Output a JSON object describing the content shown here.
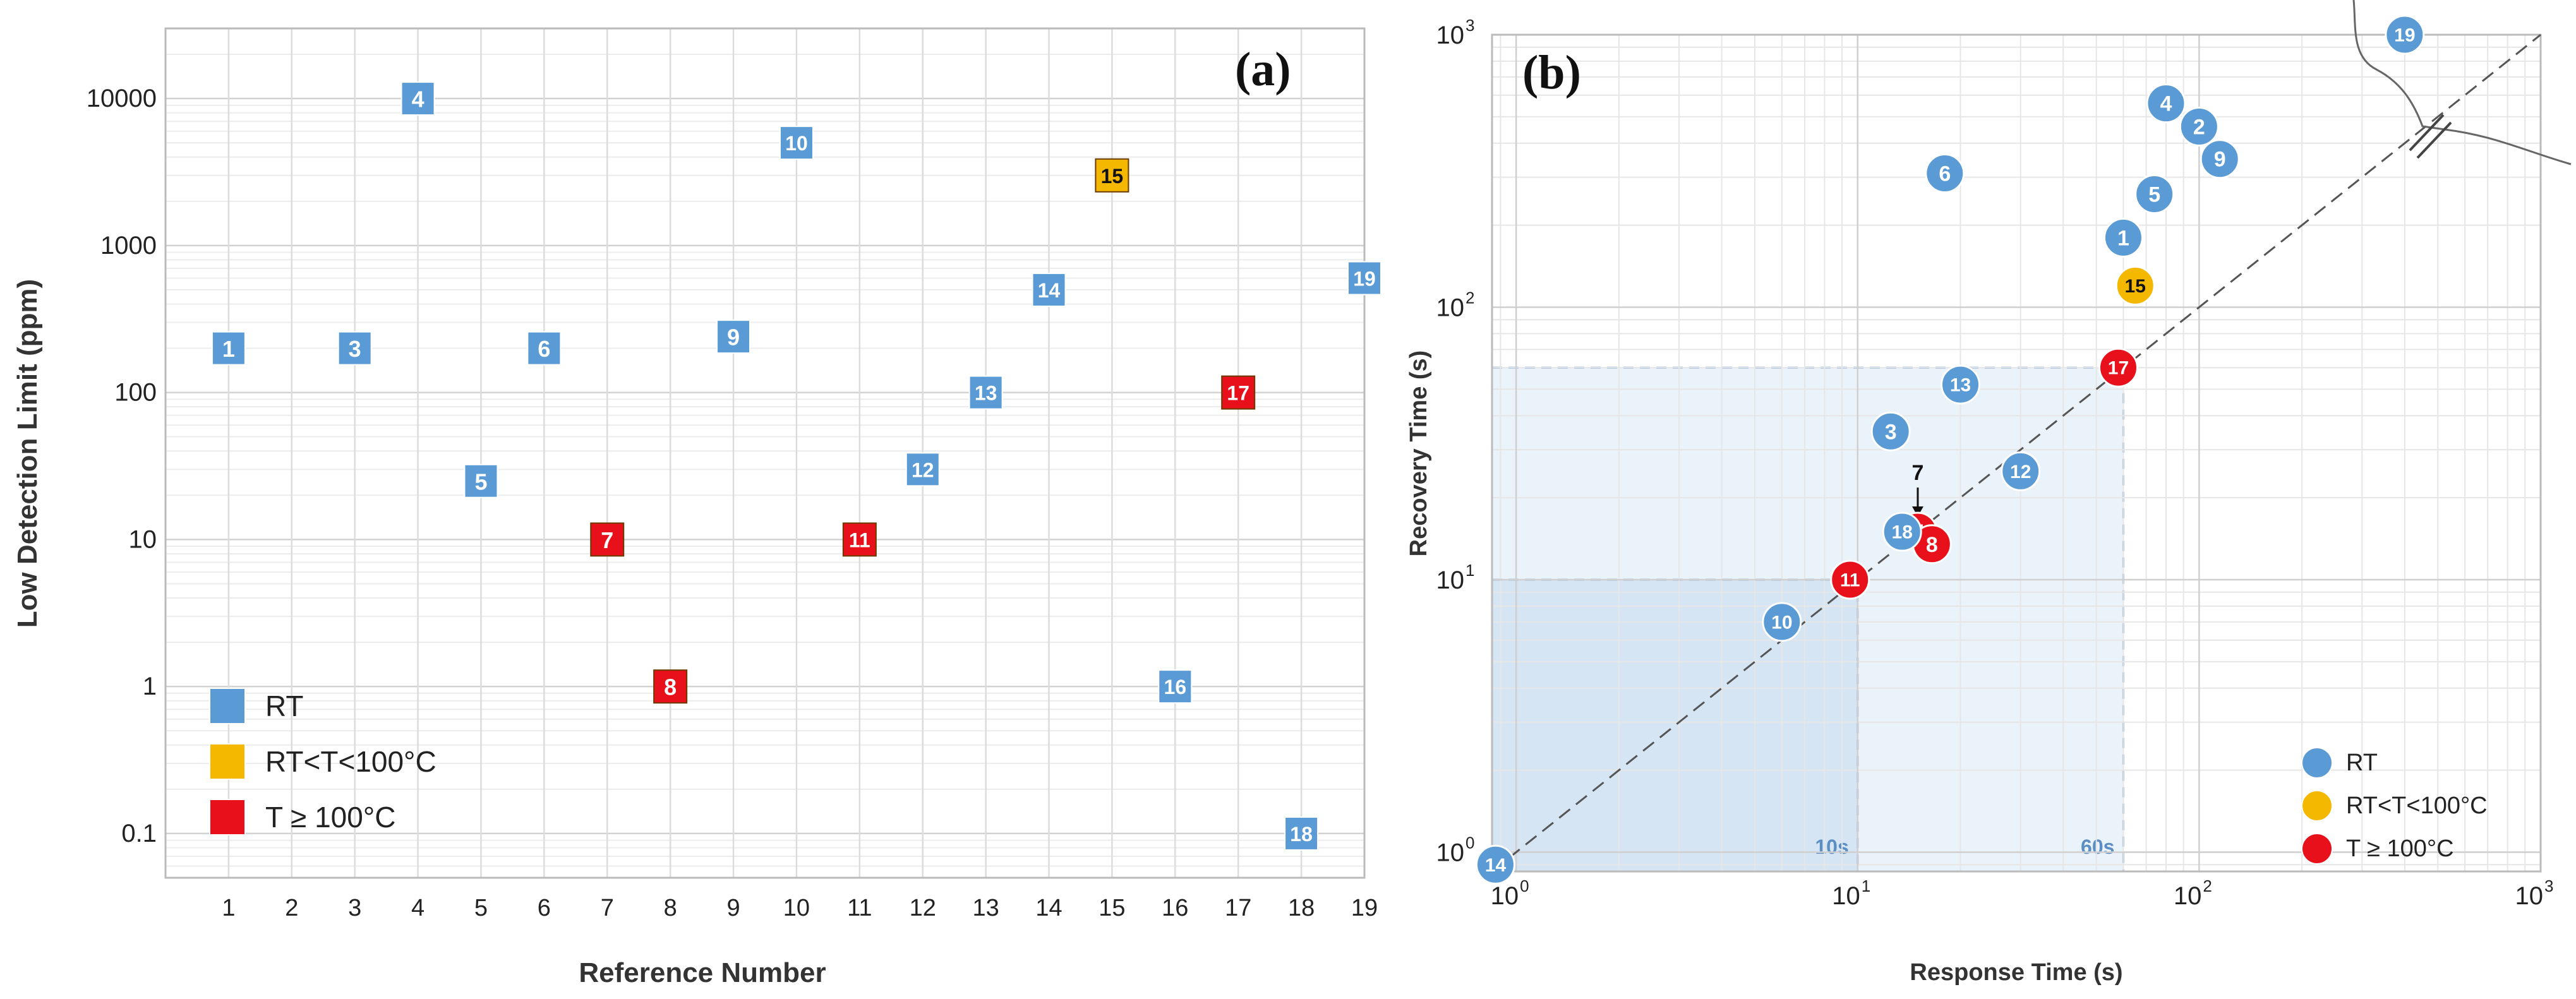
{
  "chart_data": [
    {
      "type": "scatter",
      "panel_label": "(a)",
      "xlabel": "Reference Number",
      "ylabel": "Low Detection Limit (ppm)",
      "yscale": "log",
      "xlim": [
        0,
        19
      ],
      "ylim": [
        0.05,
        30000
      ],
      "x_ticks": [
        "1",
        "2",
        "3",
        "4",
        "5",
        "6",
        "7",
        "8",
        "9",
        "10",
        "11",
        "12",
        "13",
        "14",
        "15",
        "16",
        "17",
        "18",
        "19"
      ],
      "y_ticks": [
        {
          "value": 0.1,
          "label": "0.1"
        },
        {
          "value": 1,
          "label": "1"
        },
        {
          "value": 10,
          "label": "10"
        },
        {
          "value": 100,
          "label": "100"
        },
        {
          "value": 1000,
          "label": "1000"
        },
        {
          "value": 10000,
          "label": "10000"
        }
      ],
      "legend": [
        {
          "label": "RT",
          "color": "#5b9bd5"
        },
        {
          "label": "RT<T<100°C",
          "color": "#f5b800"
        },
        {
          "label": "T ≥ 100°C",
          "color": "#e8101a"
        }
      ],
      "points": [
        {
          "label": "1",
          "x": 1,
          "y": 200,
          "group": 0
        },
        {
          "label": "3",
          "x": 3,
          "y": 200,
          "group": 0
        },
        {
          "label": "4",
          "x": 4,
          "y": 10000,
          "group": 0
        },
        {
          "label": "5",
          "x": 5,
          "y": 25,
          "group": 0
        },
        {
          "label": "6",
          "x": 6,
          "y": 200,
          "group": 0
        },
        {
          "label": "7",
          "x": 7,
          "y": 10,
          "group": 2
        },
        {
          "label": "8",
          "x": 8,
          "y": 1,
          "group": 2
        },
        {
          "label": "9",
          "x": 9,
          "y": 240,
          "group": 0
        },
        {
          "label": "10",
          "x": 10,
          "y": 5000,
          "group": 0
        },
        {
          "label": "11",
          "x": 11,
          "y": 10,
          "group": 2
        },
        {
          "label": "12",
          "x": 12,
          "y": 30,
          "group": 0
        },
        {
          "label": "13",
          "x": 13,
          "y": 100,
          "group": 0
        },
        {
          "label": "14",
          "x": 14,
          "y": 500,
          "group": 0
        },
        {
          "label": "15",
          "x": 15,
          "y": 3000,
          "group": 1
        },
        {
          "label": "16",
          "x": 16,
          "y": 1,
          "group": 0
        },
        {
          "label": "17",
          "x": 17,
          "y": 100,
          "group": 2
        },
        {
          "label": "18",
          "x": 18,
          "y": 0.1,
          "group": 0
        },
        {
          "label": "19",
          "x": 19,
          "y": 600,
          "group": 0
        }
      ]
    },
    {
      "type": "scatter",
      "panel_label": "(b)",
      "xlabel": "Response Time (s)",
      "ylabel": "Recovery Time (s)",
      "xscale": "log",
      "yscale": "log",
      "xlim": [
        0.85,
        1000
      ],
      "ylim": [
        0.85,
        1000
      ],
      "x_ticks": [
        {
          "value": 1,
          "base": "10",
          "exp": "0"
        },
        {
          "value": 10,
          "base": "10",
          "exp": "1"
        },
        {
          "value": 100,
          "base": "10",
          "exp": "2"
        },
        {
          "value": 1000,
          "base": "10",
          "exp": "3"
        }
      ],
      "y_ticks": [
        {
          "value": 1,
          "base": "10",
          "exp": "0"
        },
        {
          "value": 10,
          "base": "10",
          "exp": "1"
        },
        {
          "value": 100,
          "base": "10",
          "exp": "2"
        },
        {
          "value": 1000,
          "base": "10",
          "exp": "3"
        }
      ],
      "legend": [
        {
          "label": "RT",
          "color": "#5b9bd5"
        },
        {
          "label": "RT<T<100°C",
          "color": "#f5b800"
        },
        {
          "label": "T ≥ 100°C",
          "color": "#e8101a"
        }
      ],
      "regions": [
        {
          "label": "10s",
          "x_max": 10,
          "y_max": 10
        },
        {
          "label": "60s",
          "x_max": 60,
          "y_max": 60
        }
      ],
      "annotation": "7",
      "points": [
        {
          "label": "1",
          "x": 60,
          "y": 180,
          "group": 0
        },
        {
          "label": "2",
          "x": 100,
          "y": 460,
          "group": 0
        },
        {
          "label": "3",
          "x": 12.5,
          "y": 35,
          "group": 0
        },
        {
          "label": "4",
          "x": 80,
          "y": 560,
          "group": 0
        },
        {
          "label": "5",
          "x": 74,
          "y": 260,
          "group": 0
        },
        {
          "label": "6",
          "x": 18,
          "y": 310,
          "group": 0
        },
        {
          "label": "7",
          "x": 15,
          "y": 15,
          "group": 2
        },
        {
          "label": "8",
          "x": 16.5,
          "y": 13.5,
          "group": 2
        },
        {
          "label": "9",
          "x": 115,
          "y": 350,
          "group": 0
        },
        {
          "label": "10",
          "x": 6,
          "y": 7,
          "group": 0
        },
        {
          "label": "11",
          "x": 9.5,
          "y": 10,
          "group": 2
        },
        {
          "label": "12",
          "x": 30,
          "y": 25,
          "group": 0
        },
        {
          "label": "13",
          "x": 20,
          "y": 52,
          "group": 0
        },
        {
          "label": "14",
          "x": 0.87,
          "y": 0.9,
          "group": 0
        },
        {
          "label": "15",
          "x": 65,
          "y": 120,
          "group": 1
        },
        {
          "label": "17",
          "x": 58,
          "y": 60,
          "group": 2
        },
        {
          "label": "18",
          "x": 13.5,
          "y": 15,
          "group": 0
        },
        {
          "label": "19",
          "x": 400,
          "y": 1000,
          "group": 0
        }
      ]
    }
  ]
}
